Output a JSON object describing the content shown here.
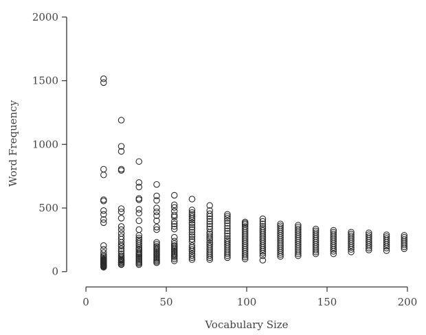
{
  "chart_data": {
    "type": "scatter",
    "title": "",
    "xlabel": "Vocabulary Size",
    "ylabel": "Word Frequency",
    "xlim": [
      -12,
      206
    ],
    "ylim": [
      -120,
      2080
    ],
    "xticks": [
      0,
      50,
      100,
      150,
      200
    ],
    "yticks": [
      0,
      500,
      1000,
      1500,
      2000
    ],
    "grid": false,
    "legend": "none",
    "marker": "open-circle",
    "series": [
      {
        "columns": [
          {
            "x": 11,
            "y": [
              1515,
              1485,
              805,
              760,
              565,
              555,
              480,
              450,
              410,
              385,
              205,
              175,
              150,
              130,
              120,
              110,
              100,
              95,
              90,
              85,
              80,
              75,
              70,
              65,
              60,
              55,
              50,
              45,
              40,
              35
            ]
          },
          {
            "x": 22,
            "y": [
              1190,
              985,
              945,
              805,
              795,
              495,
              470,
              420,
              355,
              330,
              300,
              275,
              255,
              230,
              210,
              200,
              180,
              160,
              140,
              125,
              115,
              105,
              95,
              90,
              85,
              75,
              70,
              60,
              55
            ]
          },
          {
            "x": 33,
            "y": [
              865,
              700,
              665,
              575,
              565,
              490,
              460,
              400,
              330,
              285,
              265,
              250,
              235,
              220,
              205,
              190,
              180,
              170,
              155,
              145,
              135,
              125,
              115,
              105,
              95,
              85,
              75,
              65,
              55
            ]
          },
          {
            "x": 44,
            "y": [
              685,
              595,
              560,
              500,
              470,
              440,
              400,
              350,
              330,
              230,
              215,
              200,
              190,
              180,
              170,
              160,
              150,
              140,
              130,
              120,
              110,
              100,
              90,
              80,
              70
            ]
          },
          {
            "x": 55,
            "y": [
              600,
              525,
              505,
              475,
              445,
              430,
              395,
              375,
              355,
              335,
              270,
              240,
              220,
              205,
              195,
              185,
              175,
              165,
              155,
              145,
              135,
              125,
              115,
              100,
              85
            ]
          },
          {
            "x": 66,
            "y": [
              570,
              485,
              465,
              450,
              435,
              420,
              405,
              385,
              370,
              350,
              330,
              310,
              290,
              275,
              255,
              235,
              205,
              190,
              175,
              160,
              140,
              125,
              110,
              95
            ]
          },
          {
            "x": 77,
            "y": [
              520,
              480,
              455,
              435,
              415,
              395,
              375,
              355,
              335,
              310,
              295,
              280,
              265,
              250,
              230,
              215,
              200,
              185,
              170,
              155,
              140,
              125,
              110,
              95
            ]
          },
          {
            "x": 88,
            "y": [
              450,
              435,
              420,
              400,
              380,
              360,
              340,
              320,
              300,
              280,
              260,
              245,
              230,
              215,
              200,
              185,
              170,
              155,
              140,
              125,
              110
            ]
          },
          {
            "x": 99,
            "y": [
              390,
              380,
              370,
              355,
              340,
              325,
              310,
              295,
              280,
              265,
              250,
              235,
              220,
              205,
              190,
              175,
              160,
              145,
              130,
              115,
              100
            ]
          },
          {
            "x": 110,
            "y": [
              415,
              395,
              375,
              355,
              340,
              325,
              310,
              295,
              280,
              265,
              250,
              235,
              220,
              205,
              190,
              175,
              160,
              145,
              125,
              90
            ]
          },
          {
            "x": 121,
            "y": [
              375,
              360,
              345,
              330,
              315,
              300,
              285,
              270,
              255,
              240,
              225,
              210,
              195,
              180,
              165,
              150,
              135,
              120
            ]
          },
          {
            "x": 132,
            "y": [
              365,
              350,
              335,
              320,
              305,
              290,
              275,
              260,
              245,
              230,
              215,
              200,
              185,
              170,
              155,
              140,
              125
            ]
          },
          {
            "x": 143,
            "y": [
              335,
              320,
              305,
              290,
              275,
              260,
              245,
              230,
              215,
              200,
              185,
              170,
              155,
              140
            ]
          },
          {
            "x": 154,
            "y": [
              325,
              310,
              295,
              280,
              265,
              250,
              235,
              220,
              205,
              190,
              175,
              160,
              140
            ]
          },
          {
            "x": 165,
            "y": [
              310,
              295,
              280,
              265,
              250,
              235,
              220,
              205,
              190,
              175,
              155
            ]
          },
          {
            "x": 176,
            "y": [
              305,
              290,
              275,
              260,
              245,
              230,
              215,
              200,
              185,
              170
            ]
          },
          {
            "x": 187,
            "y": [
              290,
              275,
              260,
              245,
              230,
              215,
              200,
              185,
              165
            ]
          },
          {
            "x": 198,
            "y": [
              285,
              270,
              255,
              240,
              225,
              210,
              195,
              180
            ]
          }
        ]
      }
    ]
  }
}
